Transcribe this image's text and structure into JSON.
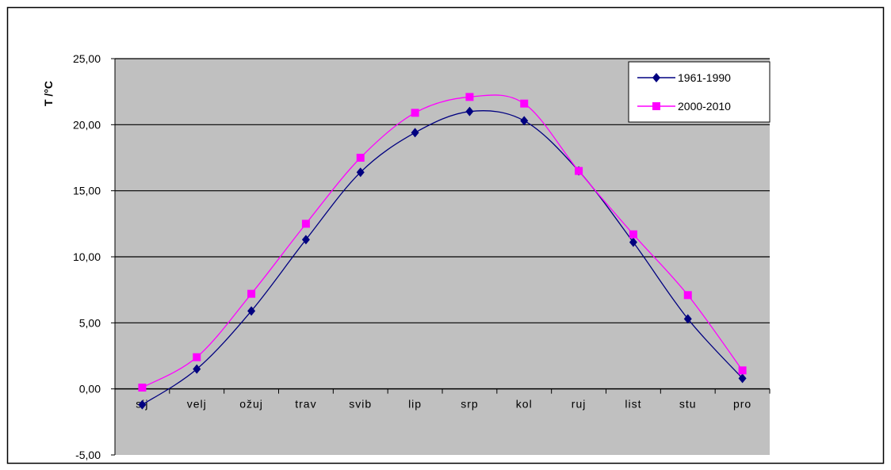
{
  "chart_data": {
    "type": "line",
    "title": "",
    "xlabel": "",
    "ylabel": "T /°C",
    "ylim": [
      -5,
      25
    ],
    "yticks": [
      -5,
      0,
      5,
      10,
      15,
      20,
      25
    ],
    "ytick_labels": [
      "-5,00",
      "0,00",
      "5,00",
      "10,00",
      "15,00",
      "20,00",
      "25,00"
    ],
    "categories": [
      "sij",
      "velj",
      "ožuj",
      "trav",
      "svib",
      "lip",
      "srp",
      "kol",
      "ruj",
      "list",
      "stu",
      "pro"
    ],
    "grid": true,
    "plot_background": "#c0c0c0",
    "legend_position": "top-right",
    "series": [
      {
        "name": "1961-1990",
        "color": "#000080",
        "marker": "diamond",
        "values": [
          -1.2,
          1.5,
          5.9,
          11.3,
          16.4,
          19.4,
          21.0,
          20.3,
          16.5,
          11.1,
          5.3,
          0.8
        ]
      },
      {
        "name": "2000-2010",
        "color": "#ff00ff",
        "marker": "square",
        "values": [
          0.1,
          2.4,
          7.2,
          12.5,
          17.5,
          20.9,
          22.1,
          21.6,
          16.5,
          11.7,
          7.1,
          1.4
        ]
      }
    ]
  }
}
